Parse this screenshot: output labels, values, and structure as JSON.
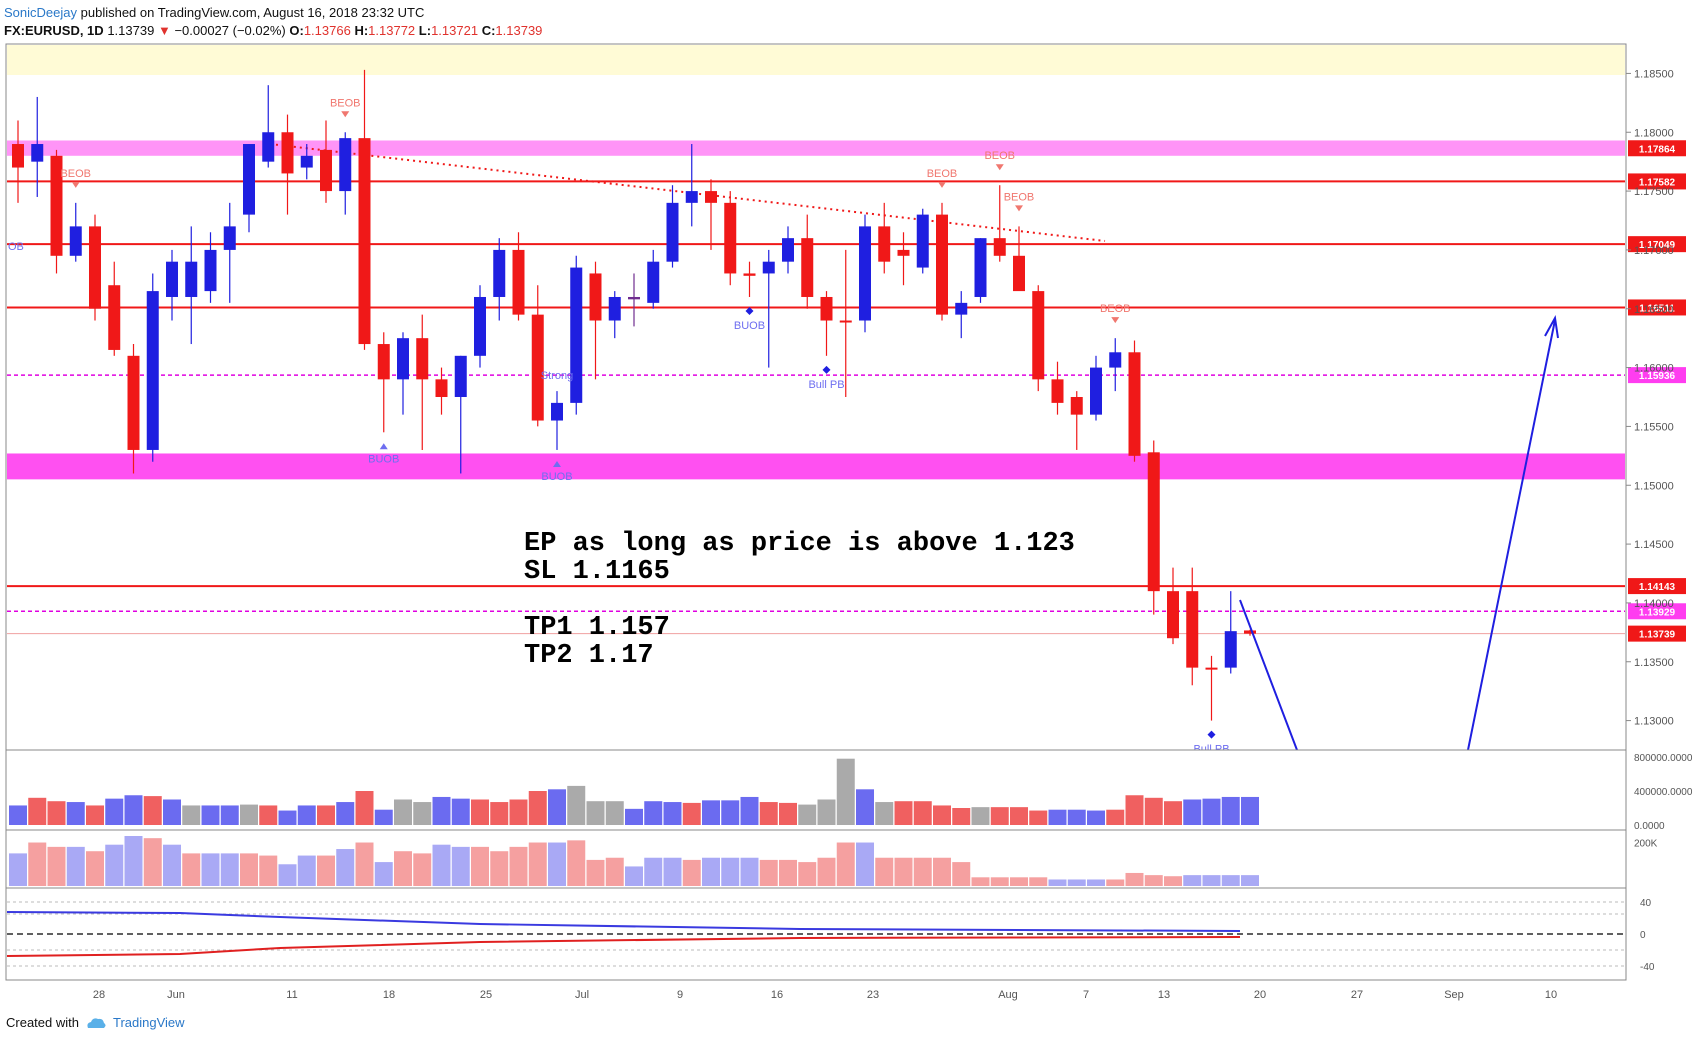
{
  "header": {
    "user": "SonicDeejay",
    "published": "published on TradingView.com, August 16, 2018 23:32 UTC"
  },
  "symbol_line": {
    "symbol": "FX:EURUSD, 1D",
    "last": "1.13739",
    "change": "−0.00027 (−0.02%)",
    "o_label": "O:",
    "o": "1.13766",
    "h_label": "H:",
    "h": "1.13772",
    "l_label": "L:",
    "l": "1.13721",
    "c_label": "C:",
    "c": "1.13739"
  },
  "annotations": {
    "ep_line1": "EP as long as price is above 1.123",
    "ep_line2": "SL 1.1165",
    "tp1": "TP1 1.157",
    "tp2": "TP2 1.17"
  },
  "footer": {
    "created_with": "Created with",
    "brand": "TradingView"
  },
  "colors": {
    "bull": "#1f1fe0",
    "bear": "#f01818",
    "neutral": "#6f2d8f",
    "level": "#f01818",
    "zone": "#ff3df0",
    "dashed": "#e000e0",
    "volume_gray": "#aaaaaa"
  },
  "chart_data": {
    "type": "candlestick",
    "title": "FX:EURUSD, 1D",
    "ylim": [
      1.1275,
      1.1875
    ],
    "x_tick_labels": [
      "28",
      "Jun",
      "11",
      "18",
      "25",
      "Jul",
      "9",
      "16",
      "23",
      "Aug",
      "7",
      "13",
      "20",
      "27",
      "Sep",
      "10"
    ],
    "price_tick_labels": [
      "1.18500",
      "1.18000",
      "1.17500",
      "1.17000",
      "1.16500",
      "1.16000",
      "1.15500",
      "1.15000",
      "1.14500",
      "1.14000",
      "1.13500",
      "1.13000"
    ],
    "candles": [
      {
        "o": 1.179,
        "h": 1.181,
        "l": 1.174,
        "c": 1.177
      },
      {
        "o": 1.1775,
        "h": 1.183,
        "l": 1.1745,
        "c": 1.179
      },
      {
        "o": 1.178,
        "h": 1.1785,
        "l": 1.168,
        "c": 1.1695
      },
      {
        "o": 1.1695,
        "h": 1.174,
        "l": 1.169,
        "c": 1.172
      },
      {
        "o": 1.172,
        "h": 1.173,
        "l": 1.164,
        "c": 1.165
      },
      {
        "o": 1.167,
        "h": 1.169,
        "l": 1.161,
        "c": 1.1615
      },
      {
        "o": 1.161,
        "h": 1.162,
        "l": 1.151,
        "c": 1.153
      },
      {
        "o": 1.153,
        "h": 1.168,
        "l": 1.152,
        "c": 1.1665
      },
      {
        "o": 1.166,
        "h": 1.17,
        "l": 1.164,
        "c": 1.169
      },
      {
        "o": 1.166,
        "h": 1.172,
        "l": 1.162,
        "c": 1.169
      },
      {
        "o": 1.1665,
        "h": 1.1715,
        "l": 1.1655,
        "c": 1.17
      },
      {
        "o": 1.17,
        "h": 1.174,
        "l": 1.1655,
        "c": 1.172
      },
      {
        "o": 1.173,
        "h": 1.179,
        "l": 1.1715,
        "c": 1.179
      },
      {
        "o": 1.1775,
        "h": 1.184,
        "l": 1.177,
        "c": 1.18
      },
      {
        "o": 1.18,
        "h": 1.1815,
        "l": 1.173,
        "c": 1.1765
      },
      {
        "o": 1.177,
        "h": 1.179,
        "l": 1.176,
        "c": 1.178
      },
      {
        "o": 1.1785,
        "h": 1.181,
        "l": 1.174,
        "c": 1.175
      },
      {
        "o": 1.175,
        "h": 1.18,
        "l": 1.173,
        "c": 1.1795
      },
      {
        "o": 1.1795,
        "h": 1.1853,
        "l": 1.1615,
        "c": 1.162
      },
      {
        "o": 1.162,
        "h": 1.163,
        "l": 1.1545,
        "c": 1.159
      },
      {
        "o": 1.159,
        "h": 1.163,
        "l": 1.156,
        "c": 1.1625
      },
      {
        "o": 1.1625,
        "h": 1.1645,
        "l": 1.153,
        "c": 1.159
      },
      {
        "o": 1.159,
        "h": 1.16,
        "l": 1.156,
        "c": 1.1575
      },
      {
        "o": 1.1575,
        "h": 1.161,
        "l": 1.151,
        "c": 1.161
      },
      {
        "o": 1.161,
        "h": 1.167,
        "l": 1.16,
        "c": 1.166
      },
      {
        "o": 1.166,
        "h": 1.171,
        "l": 1.164,
        "c": 1.17
      },
      {
        "o": 1.17,
        "h": 1.1715,
        "l": 1.164,
        "c": 1.1645
      },
      {
        "o": 1.1645,
        "h": 1.167,
        "l": 1.155,
        "c": 1.1555
      },
      {
        "o": 1.1555,
        "h": 1.158,
        "l": 1.153,
        "c": 1.157
      },
      {
        "o": 1.157,
        "h": 1.1695,
        "l": 1.156,
        "c": 1.1685
      },
      {
        "o": 1.168,
        "h": 1.169,
        "l": 1.159,
        "c": 1.164
      },
      {
        "o": 1.164,
        "h": 1.1665,
        "l": 1.1625,
        "c": 1.166
      },
      {
        "o": 1.166,
        "h": 1.168,
        "l": 1.1635,
        "c": 1.1658
      },
      {
        "o": 1.1655,
        "h": 1.17,
        "l": 1.165,
        "c": 1.169
      },
      {
        "o": 1.169,
        "h": 1.1755,
        "l": 1.1685,
        "c": 1.174
      },
      {
        "o": 1.174,
        "h": 1.179,
        "l": 1.172,
        "c": 1.175
      },
      {
        "o": 1.175,
        "h": 1.176,
        "l": 1.17,
        "c": 1.174
      },
      {
        "o": 1.174,
        "h": 1.175,
        "l": 1.167,
        "c": 1.168
      },
      {
        "o": 1.168,
        "h": 1.169,
        "l": 1.166,
        "c": 1.1678
      },
      {
        "o": 1.168,
        "h": 1.17,
        "l": 1.16,
        "c": 1.169
      },
      {
        "o": 1.169,
        "h": 1.172,
        "l": 1.168,
        "c": 1.171
      },
      {
        "o": 1.171,
        "h": 1.173,
        "l": 1.165,
        "c": 1.166
      },
      {
        "o": 1.166,
        "h": 1.1665,
        "l": 1.161,
        "c": 1.164
      },
      {
        "o": 1.164,
        "h": 1.17,
        "l": 1.1575,
        "c": 1.164
      },
      {
        "o": 1.164,
        "h": 1.173,
        "l": 1.163,
        "c": 1.172
      },
      {
        "o": 1.172,
        "h": 1.174,
        "l": 1.168,
        "c": 1.169
      },
      {
        "o": 1.17,
        "h": 1.1715,
        "l": 1.167,
        "c": 1.1695
      },
      {
        "o": 1.1685,
        "h": 1.1735,
        "l": 1.168,
        "c": 1.173
      },
      {
        "o": 1.173,
        "h": 1.174,
        "l": 1.164,
        "c": 1.1645
      },
      {
        "o": 1.1645,
        "h": 1.1665,
        "l": 1.1625,
        "c": 1.1655
      },
      {
        "o": 1.166,
        "h": 1.171,
        "l": 1.1655,
        "c": 1.171
      },
      {
        "o": 1.171,
        "h": 1.1755,
        "l": 1.169,
        "c": 1.1695
      },
      {
        "o": 1.1695,
        "h": 1.172,
        "l": 1.167,
        "c": 1.1665
      },
      {
        "o": 1.1665,
        "h": 1.167,
        "l": 1.158,
        "c": 1.159
      },
      {
        "o": 1.159,
        "h": 1.1605,
        "l": 1.156,
        "c": 1.157
      },
      {
        "o": 1.1575,
        "h": 1.158,
        "l": 1.153,
        "c": 1.156
      },
      {
        "o": 1.156,
        "h": 1.161,
        "l": 1.1555,
        "c": 1.16
      },
      {
        "o": 1.16,
        "h": 1.1625,
        "l": 1.158,
        "c": 1.1613
      },
      {
        "o": 1.1613,
        "h": 1.1623,
        "l": 1.152,
        "c": 1.1525
      },
      {
        "o": 1.1528,
        "h": 1.1538,
        "l": 1.139,
        "c": 1.141
      },
      {
        "o": 1.141,
        "h": 1.143,
        "l": 1.1365,
        "c": 1.137
      },
      {
        "o": 1.141,
        "h": 1.143,
        "l": 1.133,
        "c": 1.1345
      },
      {
        "o": 1.1345,
        "h": 1.1355,
        "l": 1.13,
        "c": 1.1345
      },
      {
        "o": 1.1345,
        "h": 1.141,
        "l": 1.134,
        "c": 1.1376
      },
      {
        "o": 1.13766,
        "h": 1.13772,
        "l": 1.13721,
        "c": 1.13739
      }
    ],
    "price_levels": [
      {
        "price": 1.17864,
        "label": "1.17864",
        "kind": "zone"
      },
      {
        "price": 1.17582,
        "label": "1.17582",
        "kind": "level"
      },
      {
        "price": 1.17049,
        "label": "1.17049",
        "kind": "level"
      },
      {
        "price": 1.16511,
        "label": "1.16511",
        "kind": "level"
      },
      {
        "price": 1.15936,
        "label": "1.15936",
        "kind": "dashed"
      },
      {
        "price": 1.14143,
        "label": "1.14143",
        "kind": "level"
      },
      {
        "price": 1.13929,
        "label": "1.13929",
        "kind": "dashed"
      },
      {
        "price": 1.13739,
        "label": "1.13739",
        "kind": "last"
      }
    ],
    "zones": [
      {
        "from": 1.1505,
        "to": 1.1527
      },
      {
        "from": 1.178,
        "to": 1.1793
      }
    ],
    "signals": [
      {
        "i": 3,
        "text": "BEOB",
        "type": "bear"
      },
      {
        "i": 17,
        "text": "BEOB",
        "type": "bear"
      },
      {
        "i": 19,
        "text": "BUOB",
        "type": "bull"
      },
      {
        "i": 28,
        "text": "BUOB",
        "type": "bull"
      },
      {
        "i": 28,
        "text": "Strong",
        "type": "bull-top"
      },
      {
        "i": 38,
        "text": "BUOB",
        "type": "diamond-bull"
      },
      {
        "i": 42,
        "text": "Bull PB",
        "type": "diamond-bull"
      },
      {
        "i": 48,
        "text": "BEOB",
        "type": "bear"
      },
      {
        "i": 51,
        "text": "BEOB",
        "type": "bear"
      },
      {
        "i": 52,
        "text": "BEOB",
        "type": "bear"
      },
      {
        "i": 57,
        "text": "BEOB",
        "type": "bear"
      },
      {
        "i": 62,
        "text": "Bull PB",
        "type": "diamond-bull"
      },
      {
        "i": 0,
        "text": "OB",
        "type": "bull-left"
      }
    ],
    "volume_ticks": [
      "800000.0000",
      "400000.0000",
      "0.0000"
    ],
    "volume": [
      230,
      320,
      280,
      270,
      230,
      310,
      350,
      340,
      300,
      230,
      230,
      230,
      240,
      230,
      170,
      230,
      230,
      270,
      400,
      180,
      300,
      270,
      330,
      310,
      300,
      270,
      300,
      400,
      420,
      460,
      280,
      280,
      190,
      280,
      270,
      260,
      290,
      290,
      330,
      270,
      260,
      240,
      300,
      780,
      420,
      270,
      280,
      280,
      230,
      200,
      210,
      210,
      210,
      170,
      180,
      180,
      170,
      180,
      350,
      320,
      280,
      300,
      310,
      330,
      330
    ],
    "volume_color": [
      "b",
      "r",
      "r",
      "b",
      "r",
      "b",
      "b",
      "r",
      "b",
      "g",
      "b",
      "b",
      "g",
      "r",
      "b",
      "b",
      "r",
      "b",
      "r",
      "b",
      "g",
      "g",
      "b",
      "b",
      "r",
      "r",
      "r",
      "r",
      "b",
      "g",
      "g",
      "g",
      "b",
      "b",
      "b",
      "r",
      "b",
      "b",
      "b",
      "r",
      "r",
      "g",
      "g",
      "g",
      "b",
      "g",
      "r",
      "r",
      "r",
      "r",
      "g",
      "r",
      "r",
      "r",
      "b",
      "b",
      "b",
      "r",
      "r",
      "r",
      "r",
      "b",
      "b",
      "b",
      "b"
    ],
    "osc_ticks": [
      "200K"
    ],
    "osc": [
      150,
      200,
      180,
      180,
      160,
      190,
      230,
      220,
      190,
      150,
      150,
      150,
      150,
      140,
      100,
      140,
      140,
      170,
      200,
      110,
      160,
      150,
      190,
      180,
      180,
      160,
      180,
      200,
      200,
      210,
      120,
      130,
      90,
      130,
      130,
      120,
      130,
      130,
      130,
      120,
      120,
      110,
      130,
      200,
      200,
      130,
      130,
      130,
      130,
      110,
      40,
      40,
      40,
      40,
      30,
      30,
      30,
      30,
      60,
      50,
      45,
      50,
      50,
      50,
      50
    ],
    "dmi_ticks": [
      "40",
      "0",
      "-40"
    ]
  }
}
